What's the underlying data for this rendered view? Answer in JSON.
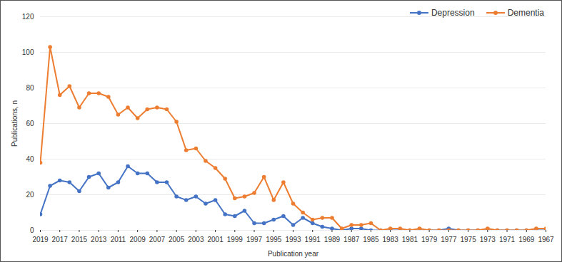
{
  "chart_data": {
    "type": "line",
    "x_label": "Publication year",
    "y_label": "Publications, n",
    "x": [
      2019,
      2018,
      2017,
      2016,
      2015,
      2014,
      2013,
      2012,
      2011,
      2010,
      2009,
      2008,
      2007,
      2006,
      2005,
      2004,
      2003,
      2002,
      2001,
      2000,
      1999,
      1998,
      1997,
      1996,
      1995,
      1994,
      1993,
      1992,
      1991,
      1990,
      1989,
      1988,
      1987,
      1986,
      1985,
      1984,
      1983,
      1982,
      1981,
      1980,
      1979,
      1978,
      1977,
      1976,
      1975,
      1974,
      1973,
      1972,
      1971,
      1970,
      1969,
      1968,
      1967
    ],
    "series": [
      {
        "name": "Depression",
        "color": "#4472c4",
        "marker": "circle",
        "values": [
          9,
          25,
          28,
          27,
          22,
          30,
          32,
          24,
          27,
          36,
          32,
          32,
          27,
          27,
          19,
          17,
          19,
          15,
          17,
          9,
          8,
          11,
          4,
          4,
          6,
          8,
          3,
          7,
          4,
          2,
          1,
          0,
          1,
          1,
          0,
          0,
          0,
          0,
          0,
          0,
          0,
          0,
          1,
          0,
          0,
          0,
          0,
          0,
          0,
          0,
          0,
          0,
          0
        ]
      },
      {
        "name": "Dementia",
        "color": "#ed7d31",
        "marker": "circle",
        "values": [
          38,
          103,
          76,
          81,
          69,
          77,
          77,
          75,
          65,
          69,
          63,
          68,
          69,
          68,
          61,
          45,
          46,
          39,
          35,
          29,
          18,
          19,
          21,
          30,
          17,
          27,
          15,
          10,
          6,
          7,
          7,
          1,
          3,
          3,
          4,
          0,
          1,
          1,
          0,
          1,
          0,
          0,
          0,
          0,
          0,
          0,
          1,
          0,
          0,
          0,
          0,
          1,
          1
        ]
      }
    ],
    "xlim": [
      2019,
      1967
    ],
    "xticks": [
      2019,
      2017,
      2015,
      2013,
      2011,
      2009,
      2007,
      2005,
      2003,
      2001,
      1999,
      1997,
      1995,
      1993,
      1991,
      1989,
      1987,
      1985,
      1983,
      1981,
      1979,
      1977,
      1975,
      1973,
      1971,
      1969,
      1967
    ],
    "ylim": [
      0,
      120
    ],
    "yticks": [
      0,
      20,
      40,
      60,
      80,
      100,
      120
    ],
    "grid": true,
    "legend": "top-right"
  }
}
